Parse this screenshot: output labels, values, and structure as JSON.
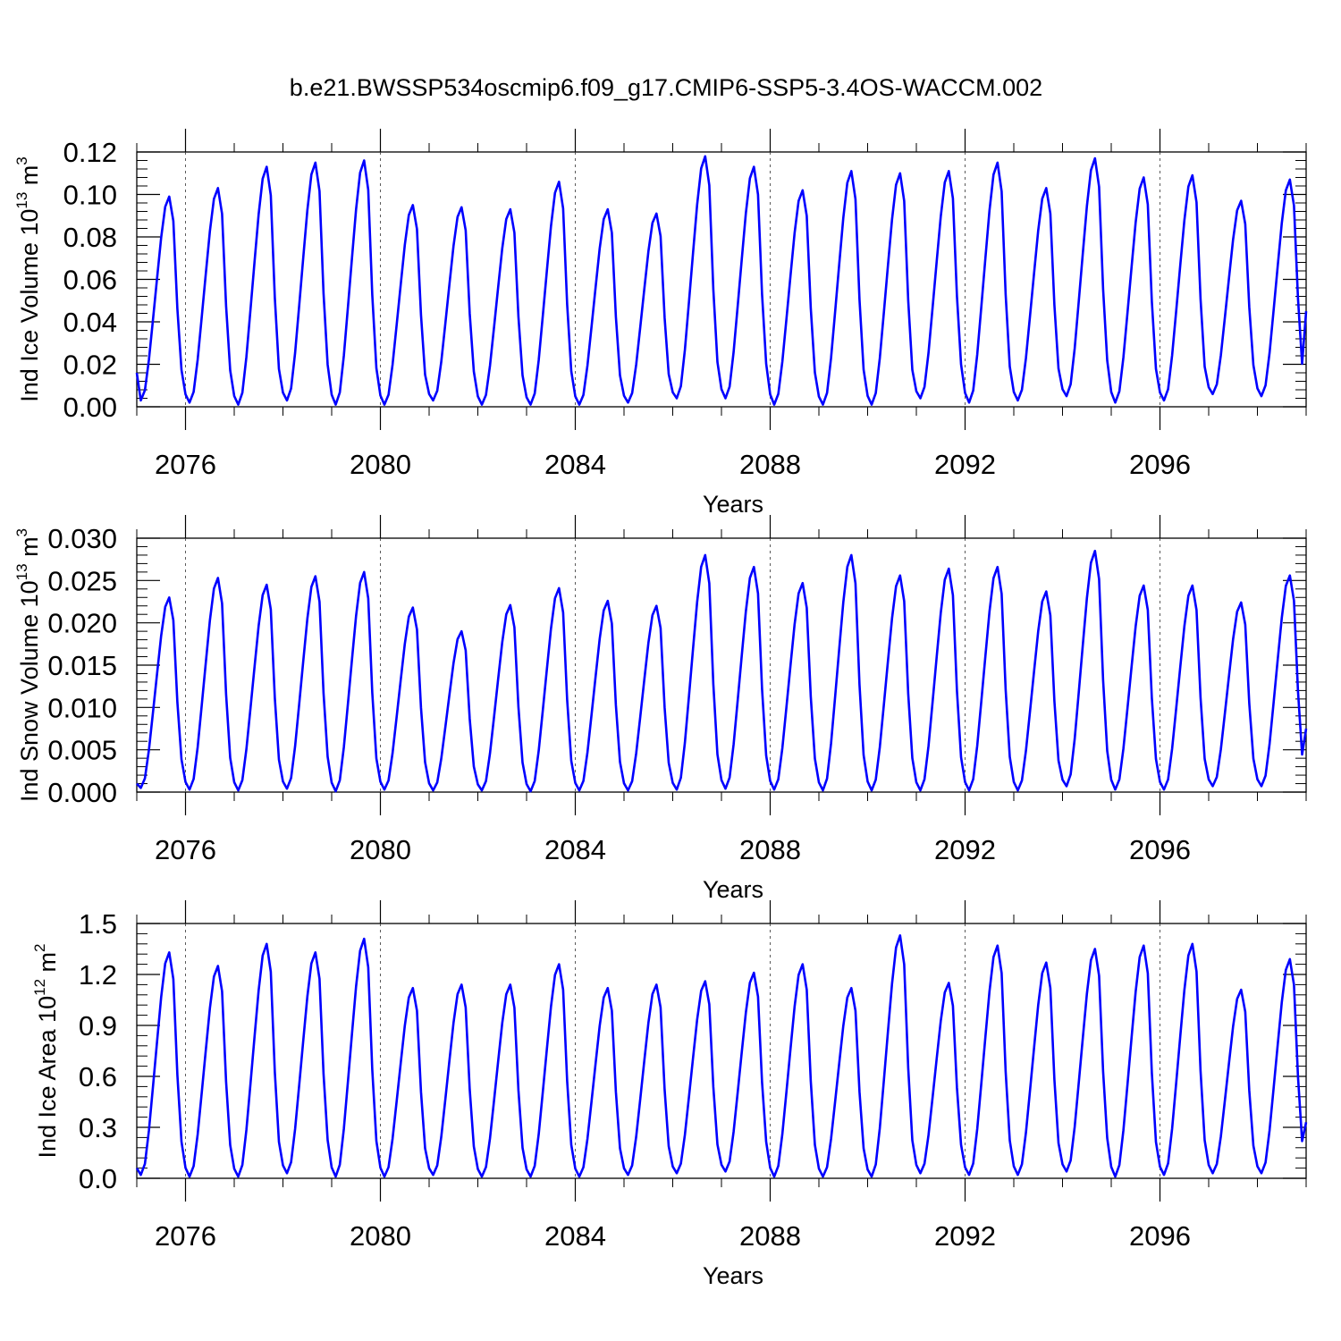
{
  "title": "b.e21.BWSSP534oscmip6.f09_g17.CMIP6-SSP5-3.4OS-WACCM.002",
  "chart_data": [
    {
      "type": "line",
      "ylabel": "Ind Ice Volume 10",
      "ylabel_exp": "13",
      "ylabel_unit": "m",
      "ylabel_unit_exp": "3",
      "xlabel": "Years",
      "xlim": [
        2075,
        2099
      ],
      "ylim": [
        0.0,
        0.12
      ],
      "yticks": [
        "0.00",
        "0.02",
        "0.04",
        "0.06",
        "0.08",
        "0.10",
        "0.12"
      ],
      "ytick_values": [
        0,
        0.02,
        0.04,
        0.06,
        0.08,
        0.1,
        0.12
      ],
      "xticks": [
        "2076",
        "2080",
        "2084",
        "2088",
        "2092",
        "2096"
      ],
      "xtick_values": [
        2076,
        2080,
        2084,
        2088,
        2092,
        2096
      ],
      "grid": "dashed vertical lines at major x ticks",
      "color": "#0000ff",
      "x_start": 2075.0,
      "x_step_months": 1,
      "annual_peaks": [
        0.099,
        0.103,
        0.113,
        0.115,
        0.116,
        0.095,
        0.094,
        0.093,
        0.106,
        0.093,
        0.091,
        0.118,
        0.113,
        0.102,
        0.111,
        0.11,
        0.111,
        0.115,
        0.103,
        0.117,
        0.108,
        0.109,
        0.097,
        0.107
      ],
      "annual_mins": [
        0.003,
        0.002,
        0.001,
        0.003,
        0.001,
        0.001,
        0.003,
        0.001,
        0.001,
        0.001,
        0.002,
        0.004,
        0.004,
        0.001,
        0.001,
        0.001,
        0.004,
        0.002,
        0.003,
        0.005,
        0.002,
        0.003,
        0.006,
        0.005
      ],
      "start_value": 0.016,
      "end_value": 0.045
    },
    {
      "type": "line",
      "ylabel": "Ind Snow Volume 10",
      "ylabel_exp": "13",
      "ylabel_unit": "m",
      "ylabel_unit_exp": "3",
      "xlabel": "Years",
      "xlim": [
        2075,
        2099
      ],
      "ylim": [
        0.0,
        0.03
      ],
      "yticks": [
        "0.000",
        "0.005",
        "0.010",
        "0.015",
        "0.020",
        "0.025",
        "0.030"
      ],
      "ytick_values": [
        0,
        0.005,
        0.01,
        0.015,
        0.02,
        0.025,
        0.03
      ],
      "xticks": [
        "2076",
        "2080",
        "2084",
        "2088",
        "2092",
        "2096"
      ],
      "xtick_values": [
        2076,
        2080,
        2084,
        2088,
        2092,
        2096
      ],
      "grid": "dashed vertical lines at major x ticks",
      "color": "#0000ff",
      "x_start": 2075.0,
      "x_step_months": 1,
      "annual_peaks": [
        0.023,
        0.0253,
        0.0245,
        0.0255,
        0.026,
        0.0218,
        0.019,
        0.0221,
        0.0241,
        0.0226,
        0.022,
        0.028,
        0.0266,
        0.0247,
        0.028,
        0.0256,
        0.0264,
        0.0266,
        0.0237,
        0.0285,
        0.0244,
        0.0244,
        0.0224,
        0.0256
      ],
      "annual_mins": [
        0.0005,
        0.0003,
        0.0002,
        0.0004,
        0.0001,
        0.0003,
        0.0002,
        0.0002,
        0.0001,
        0.0002,
        0.0002,
        0.0003,
        0.0004,
        0.0003,
        0.0002,
        0.0002,
        0.0002,
        0.0002,
        0.0002,
        0.0007,
        0.0003,
        0.0003,
        0.0007,
        0.0007
      ],
      "start_value": 0.001,
      "end_value": 0.0075
    },
    {
      "type": "line",
      "ylabel": "Ind Ice Area 10",
      "ylabel_exp": "12",
      "ylabel_unit": "m",
      "ylabel_unit_exp": "2",
      "xlabel": "Years",
      "xlim": [
        2075,
        2099
      ],
      "ylim": [
        0.0,
        1.5
      ],
      "yticks": [
        "0.0",
        "0.3",
        "0.6",
        "0.9",
        "1.2",
        "1.5"
      ],
      "ytick_values": [
        0,
        0.3,
        0.6,
        0.9,
        1.2,
        1.5
      ],
      "xticks": [
        "2076",
        "2080",
        "2084",
        "2088",
        "2092",
        "2096"
      ],
      "xtick_values": [
        2076,
        2080,
        2084,
        2088,
        2092,
        2096
      ],
      "grid": "dashed vertical lines at major x ticks",
      "color": "#0000ff",
      "x_start": 2075.0,
      "x_step_months": 1,
      "annual_peaks": [
        1.33,
        1.25,
        1.38,
        1.33,
        1.41,
        1.12,
        1.14,
        1.14,
        1.26,
        1.12,
        1.14,
        1.16,
        1.21,
        1.26,
        1.12,
        1.43,
        1.15,
        1.37,
        1.27,
        1.35,
        1.37,
        1.38,
        1.11,
        1.29
      ],
      "annual_mins": [
        0.02,
        0.01,
        0.01,
        0.03,
        0.01,
        0.01,
        0.02,
        0.01,
        0.01,
        0.01,
        0.02,
        0.03,
        0.04,
        0.01,
        0.01,
        0.01,
        0.03,
        0.02,
        0.02,
        0.04,
        0.01,
        0.02,
        0.03,
        0.03
      ],
      "start_value": 0.06,
      "end_value": 0.33
    }
  ]
}
